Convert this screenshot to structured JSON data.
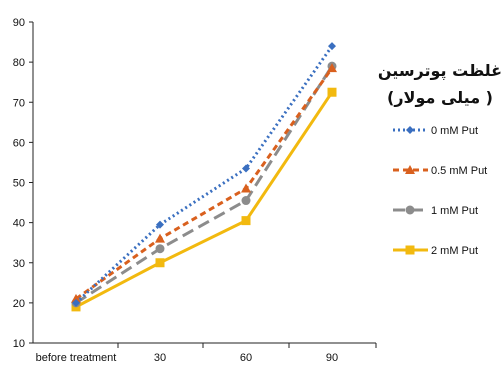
{
  "chart_data": {
    "type": "line",
    "categories": [
      "before treatment",
      "30",
      "60",
      "90"
    ],
    "ylim": [
      10,
      90
    ],
    "yticks": [
      10,
      20,
      30,
      40,
      50,
      60,
      70,
      80,
      90
    ],
    "grid": false,
    "legend_position": "right",
    "legend_title_line1": "غلظت پوترسین",
    "legend_title_line2": "( میلی مولار)",
    "series": [
      {
        "name": "0 mM Put",
        "values": [
          20,
          39.5,
          53.5,
          84
        ],
        "color": "#3a6fc0",
        "dash": "2,3",
        "marker": "diamond"
      },
      {
        "name": "0.5 mM Put",
        "values": [
          21,
          36,
          48.5,
          78.5
        ],
        "color": "#d9601e",
        "dash": "6,4",
        "marker": "triangle"
      },
      {
        "name": "1 mM Put",
        "values": [
          20,
          33.5,
          45.5,
          79
        ],
        "color": "#8c8c8c",
        "dash": "12,6",
        "marker": "circle"
      },
      {
        "name": "2 mM Put",
        "values": [
          19,
          30,
          40.5,
          72.5
        ],
        "color": "#f2b90f",
        "dash": "",
        "marker": "square"
      }
    ]
  }
}
